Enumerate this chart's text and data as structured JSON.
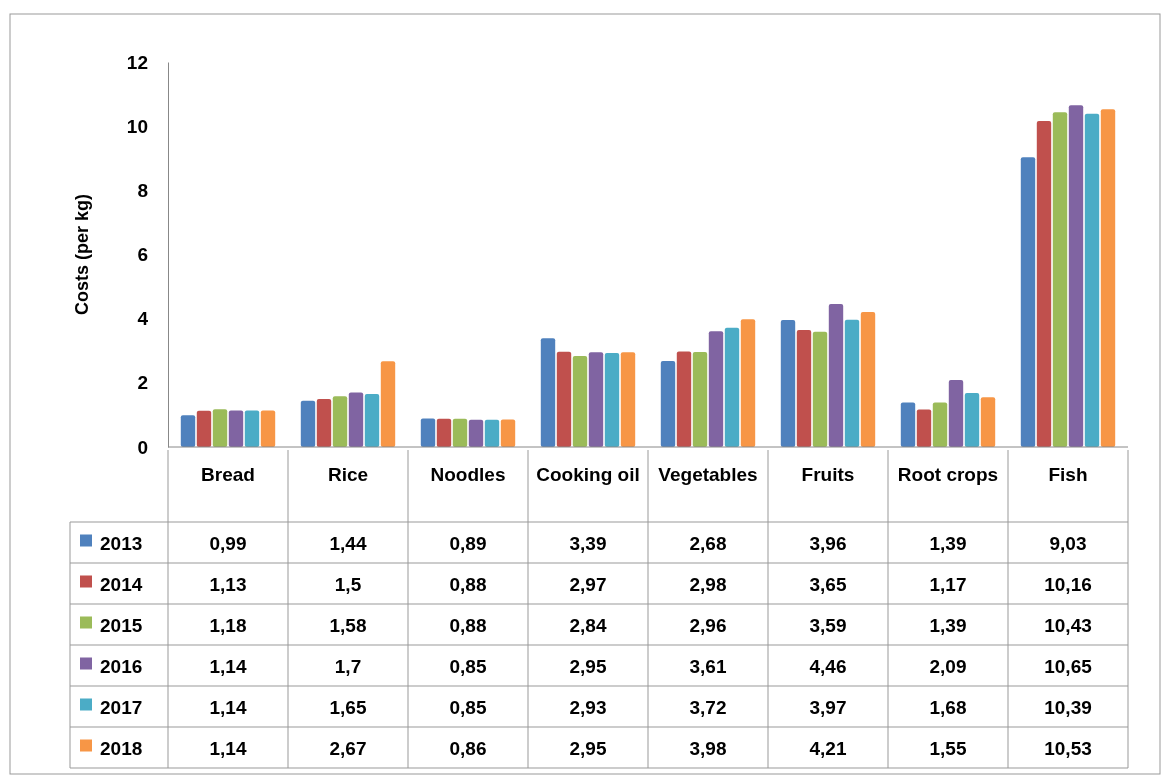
{
  "chart_data": {
    "type": "bar",
    "ylabel": "Costs (per kg)",
    "categories": [
      "Bread",
      "Rice",
      "Noodles",
      "Cooking oil",
      "Vegetables",
      "Fruits",
      "Root crops",
      "Fish"
    ],
    "ylim": [
      0,
      12
    ],
    "yticks": [
      0,
      2,
      4,
      6,
      8,
      10,
      12
    ],
    "legend": "bottom",
    "series": [
      {
        "name": "2013",
        "color": "#4f81bd",
        "values": [
          0.99,
          1.44,
          0.89,
          3.39,
          2.68,
          3.96,
          1.39,
          9.03
        ],
        "value_labels": [
          "0,99",
          "1,44",
          "0,89",
          "3,39",
          "2,68",
          "3,96",
          "1,39",
          "9,03"
        ]
      },
      {
        "name": "2014",
        "color": "#c0504d",
        "values": [
          1.13,
          1.5,
          0.88,
          2.97,
          2.98,
          3.65,
          1.17,
          10.16
        ],
        "value_labels": [
          "1,13",
          "1,5",
          "0,88",
          "2,97",
          "2,98",
          "3,65",
          "1,17",
          "10,16"
        ]
      },
      {
        "name": "2015",
        "color": "#9bbb59",
        "values": [
          1.18,
          1.58,
          0.88,
          2.84,
          2.96,
          3.59,
          1.39,
          10.43
        ],
        "value_labels": [
          "1,18",
          "1,58",
          "0,88",
          "2,84",
          "2,96",
          "3,59",
          "1,39",
          "10,43"
        ]
      },
      {
        "name": "2016",
        "color": "#8064a2",
        "values": [
          1.14,
          1.7,
          0.85,
          2.95,
          3.61,
          4.46,
          2.09,
          10.65
        ],
        "value_labels": [
          "1,14",
          "1,7",
          "0,85",
          "2,95",
          "3,61",
          "4,46",
          "2,09",
          "10,65"
        ]
      },
      {
        "name": "2017",
        "color": "#4bacc6",
        "values": [
          1.14,
          1.65,
          0.85,
          2.93,
          3.72,
          3.97,
          1.68,
          10.39
        ],
        "value_labels": [
          "1,14",
          "1,65",
          "0,85",
          "2,93",
          "3,72",
          "3,97",
          "1,68",
          "10,39"
        ]
      },
      {
        "name": "2018",
        "color": "#f79646",
        "values": [
          1.14,
          2.67,
          0.86,
          2.95,
          3.98,
          4.21,
          1.55,
          10.53
        ],
        "value_labels": [
          "1,14",
          "2,67",
          "0,86",
          "2,95",
          "3,98",
          "4,21",
          "1,55",
          "10,53"
        ]
      }
    ]
  }
}
